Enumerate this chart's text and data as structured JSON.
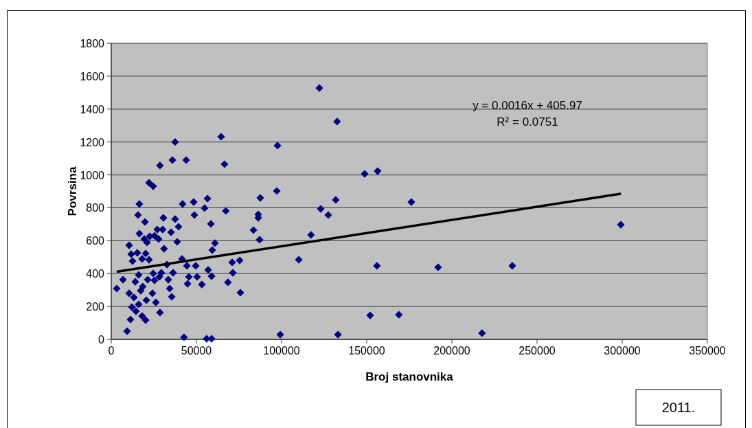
{
  "chart_data": {
    "type": "scatter",
    "xlabel": "Broj stanovnika",
    "ylabel": "Povrsina",
    "xlim": [
      0,
      350000
    ],
    "ylim": [
      0,
      1800
    ],
    "xticks": [
      0,
      50000,
      100000,
      150000,
      200000,
      250000,
      300000,
      350000
    ],
    "yticks": [
      0,
      200,
      400,
      600,
      800,
      1000,
      1200,
      1400,
      1600,
      1800
    ],
    "grid": "y",
    "marker": "diamond",
    "annotations": [
      "y = 0.0016x + 405.97",
      "R² = 0.0751",
      "2011."
    ],
    "series": [
      {
        "color": "#000080",
        "x": [
          37500,
          64500,
          35900,
          44000,
          28600,
          66500,
          22200,
          24600,
          16500,
          41900,
          48400,
          56500,
          54800,
          67300,
          15700,
          30600,
          48800,
          19800,
          37500,
          58500,
          39500,
          27000,
          30200,
          35100,
          16500,
          22600,
          25400,
          19400,
          27800,
          21000,
          38700,
          10500,
          60900,
          59300,
          31000,
          11700,
          15300,
          20200,
          12500,
          18100,
          22200,
          32700,
          41500,
          44400,
          49600,
          71000,
          75400,
          71400,
          56900,
          58900,
          68500,
          75800,
          6900,
          3200,
          29400,
          36300,
          28200,
          33500,
          45600,
          50400,
          44800,
          53200,
          34300,
          35500,
          28600,
          20200,
          11300,
          9300,
          42700,
          56000,
          58900,
          14100,
          17300,
          13300,
          16100,
          12100,
          20600,
          24200,
          25400,
          18500,
          14500,
          18100,
          26200,
          10500,
          21400,
          16100,
          24600,
          122200,
          132600,
          97600,
          148800,
          156400,
          97200,
          87500,
          131800,
          176200,
          123000,
          127400,
          86300,
          86300,
          83500,
          117300,
          87100,
          110100,
          156000,
          191900,
          152000,
          168900,
          99200,
          133100,
          299200,
          235500,
          217700
        ],
        "values": [
          1200,
          1232,
          1090,
          1090,
          1057,
          1065,
          952,
          931,
          823,
          823,
          835,
          856,
          798,
          781,
          756,
          739,
          756,
          714,
          731,
          702,
          685,
          668,
          668,
          651,
          643,
          626,
          630,
          610,
          610,
          589,
          593,
          572,
          585,
          543,
          551,
          518,
          526,
          522,
          476,
          489,
          484,
          455,
          489,
          447,
          447,
          468,
          480,
          405,
          422,
          384,
          347,
          284,
          363,
          309,
          405,
          405,
          380,
          363,
          380,
          380,
          338,
          334,
          309,
          259,
          163,
          117,
          121,
          50,
          13,
          4,
          4,
          350,
          296,
          255,
          213,
          196,
          238,
          280,
          359,
          321,
          171,
          142,
          225,
          280,
          363,
          392,
          401,
          1528,
          1324,
          1178,
          1006,
          1023,
          902,
          860,
          848,
          835,
          793,
          756,
          760,
          739,
          664,
          635,
          606,
          484,
          447,
          438,
          146,
          150,
          29,
          29,
          697,
          447,
          38
        ]
      },
      {
        "type": "line",
        "color": "#000000",
        "marker": "none",
        "x": [
          3200,
          299200
        ],
        "values": [
          411,
          885
        ]
      }
    ]
  }
}
